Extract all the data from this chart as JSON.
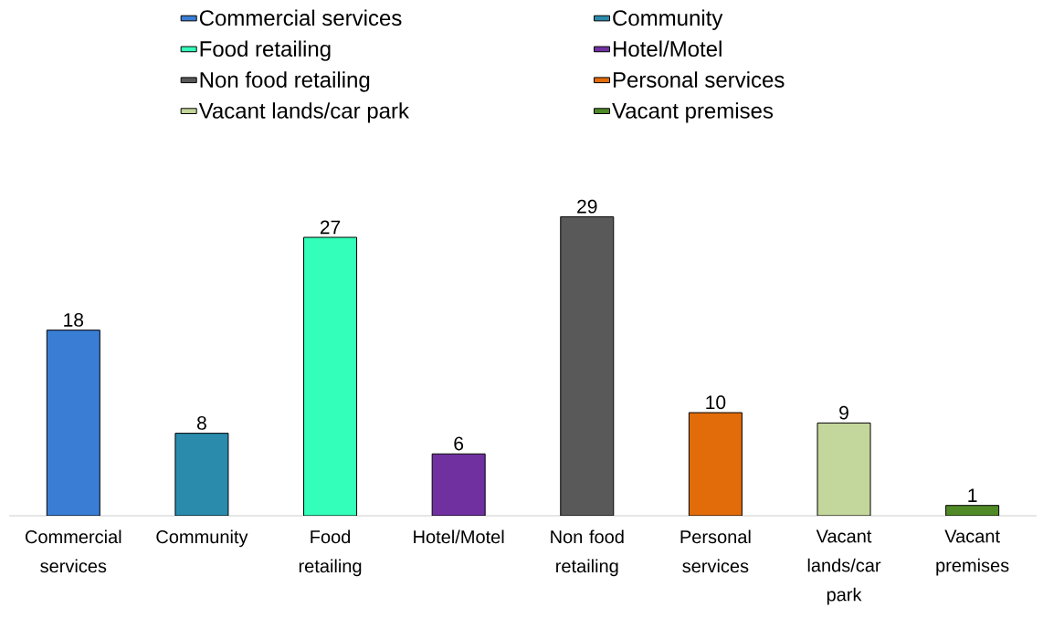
{
  "chart_data": {
    "type": "bar",
    "categories": [
      "Commercial services",
      "Community",
      "Food retailing",
      "Hotel/Motel",
      "Non food retailing",
      "Personal services",
      "Vacant lands/car park",
      "Vacant premises"
    ],
    "series": [
      {
        "name": "Commercial services",
        "color": "#3a7dd4",
        "values": [
          18,
          null,
          null,
          null,
          null,
          null,
          null,
          null
        ]
      },
      {
        "name": "Community",
        "color": "#2a8bad",
        "values": [
          null,
          8,
          null,
          null,
          null,
          null,
          null,
          null
        ]
      },
      {
        "name": "Food retailing",
        "color": "#33ffbb",
        "values": [
          null,
          null,
          27,
          null,
          null,
          null,
          null,
          null
        ]
      },
      {
        "name": "Hotel/Motel",
        "color": "#7030a0",
        "values": [
          null,
          null,
          null,
          6,
          null,
          null,
          null,
          null
        ]
      },
      {
        "name": "Non food retailing",
        "color": "#595959",
        "values": [
          null,
          null,
          null,
          null,
          29,
          null,
          null,
          null
        ]
      },
      {
        "name": "Personal services",
        "color": "#e36c0a",
        "values": [
          null,
          null,
          null,
          null,
          null,
          10,
          null,
          null
        ]
      },
      {
        "name": "Vacant lands/car park",
        "color": "#c3d69b",
        "values": [
          null,
          null,
          null,
          null,
          null,
          null,
          9,
          null
        ]
      },
      {
        "name": "Vacant premises",
        "color": "#4f8a27",
        "values": [
          null,
          null,
          null,
          null,
          null,
          null,
          null,
          1
        ]
      }
    ],
    "data_labels": true,
    "legend": "top",
    "grid": false
  }
}
